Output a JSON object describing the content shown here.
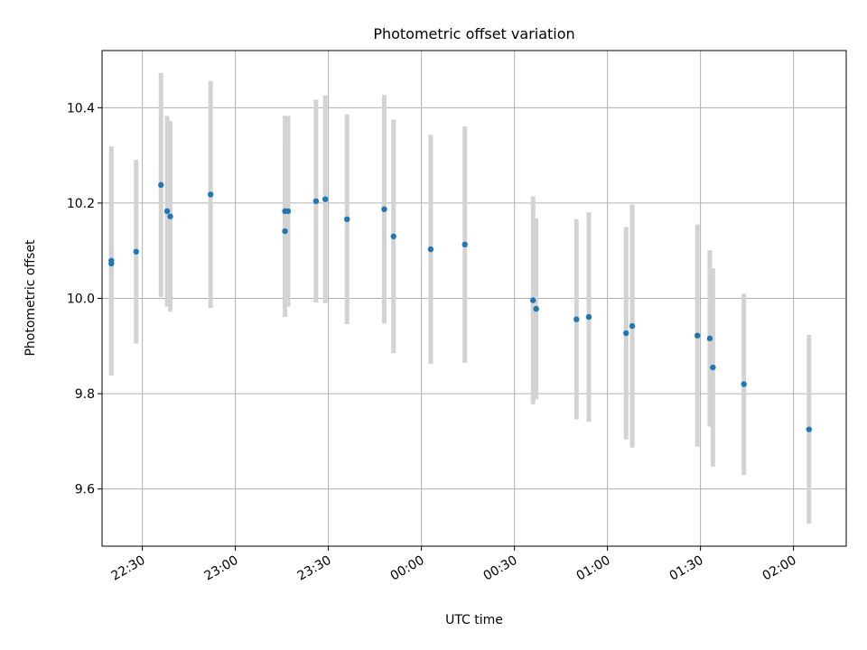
{
  "chart_data": {
    "type": "scatter",
    "title": "Photometric offset variation",
    "xlabel": "UTC time",
    "ylabel": "Photometric offset",
    "x_ticks": [
      "22:30",
      "23:00",
      "23:30",
      "00:00",
      "00:30",
      "01:00",
      "01:30",
      "02:00"
    ],
    "y_ticks": [
      "9.6",
      "9.8",
      "10.0",
      "10.2",
      "10.4"
    ],
    "xlim": [
      "22:17",
      "02:17"
    ],
    "ylim": [
      9.48,
      10.52
    ],
    "grid": true,
    "colors": {
      "point": "#1f77b4",
      "errorbar": "#d3d3d3",
      "grid": "#b0b0b0"
    },
    "points": [
      {
        "t": "22:20",
        "y": 10.073,
        "err": 0.235
      },
      {
        "t": "22:20",
        "y": 10.079,
        "err": 0.24
      },
      {
        "t": "22:28",
        "y": 10.098,
        "err": 0.193
      },
      {
        "t": "22:36",
        "y": 10.238,
        "err": 0.235
      },
      {
        "t": "22:38",
        "y": 10.183,
        "err": 0.2
      },
      {
        "t": "22:39",
        "y": 10.172,
        "err": 0.2
      },
      {
        "t": "22:52",
        "y": 10.218,
        "err": 0.238
      },
      {
        "t": "23:16",
        "y": 10.141,
        "err": 0.18
      },
      {
        "t": "23:16",
        "y": 10.183,
        "err": 0.2
      },
      {
        "t": "23:17",
        "y": 10.183,
        "err": 0.2
      },
      {
        "t": "23:26",
        "y": 10.204,
        "err": 0.213
      },
      {
        "t": "23:29",
        "y": 10.208,
        "err": 0.218
      },
      {
        "t": "23:36",
        "y": 10.166,
        "err": 0.22
      },
      {
        "t": "23:48",
        "y": 10.187,
        "err": 0.24
      },
      {
        "t": "23:51",
        "y": 10.13,
        "err": 0.245
      },
      {
        "t": "00:03",
        "y": 10.103,
        "err": 0.24
      },
      {
        "t": "00:14",
        "y": 10.113,
        "err": 0.248
      },
      {
        "t": "00:36",
        "y": 9.996,
        "err": 0.218
      },
      {
        "t": "00:37",
        "y": 9.978,
        "err": 0.19
      },
      {
        "t": "00:50",
        "y": 9.956,
        "err": 0.21
      },
      {
        "t": "00:54",
        "y": 9.961,
        "err": 0.22
      },
      {
        "t": "01:06",
        "y": 9.927,
        "err": 0.223
      },
      {
        "t": "01:08",
        "y": 9.942,
        "err": 0.255
      },
      {
        "t": "01:29",
        "y": 9.922,
        "err": 0.233
      },
      {
        "t": "01:33",
        "y": 9.916,
        "err": 0.185
      },
      {
        "t": "01:34",
        "y": 9.855,
        "err": 0.208
      },
      {
        "t": "01:44",
        "y": 9.82,
        "err": 0.19
      },
      {
        "t": "02:05",
        "y": 9.725,
        "err": 0.198
      }
    ]
  }
}
